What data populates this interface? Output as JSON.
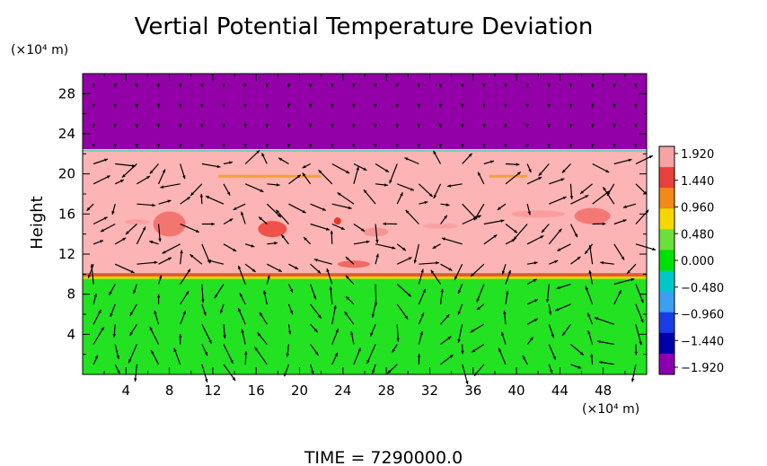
{
  "chart_data": {
    "type": "heatmap",
    "title": "Vertial Potential Temperature Deviation",
    "ylabel": "Height",
    "x_unit": "(×10⁴ m)",
    "y_unit": "(×10⁴ m)",
    "footer": "TIME  =  7290000.0",
    "xlim": [
      0,
      52
    ],
    "ylim": [
      0,
      30
    ],
    "x_ticks": [
      "4",
      "8",
      "12",
      "16",
      "20",
      "24",
      "28",
      "32",
      "36",
      "40",
      "44",
      "48"
    ],
    "y_ticks": [
      "4",
      "8",
      "12",
      "16",
      "20",
      "24",
      "28"
    ],
    "grid": false,
    "colorbar": {
      "range": [
        -1.92,
        1.92
      ],
      "labels": [
        "1.920",
        "1.440",
        "0.960",
        "0.480",
        "0.000",
        "−0.480",
        "−0.960",
        "−1.440",
        "−1.920"
      ],
      "colors": [
        "#f7a3a3",
        "#e8403a",
        "#f08a18",
        "#f5d800",
        "#6be03a",
        "#00e000",
        "#00c8c8",
        "#3aa0f0",
        "#1a3ce8",
        "#0000a8",
        "#8a00b0"
      ]
    },
    "fields": [
      {
        "name": "upper layer",
        "y_range": [
          22.3,
          30
        ],
        "value": -1.92,
        "color": "#9400a8"
      },
      {
        "name": "middle layer",
        "y_range": [
          10,
          22.3
        ],
        "value": 1.92,
        "color": "#fcb4b4"
      },
      {
        "name": "lower layer",
        "y_range": [
          0,
          10
        ],
        "value": 0.1,
        "color": "#22e222"
      }
    ],
    "vector_field": "wind vectors (black arrows) over the domain"
  }
}
